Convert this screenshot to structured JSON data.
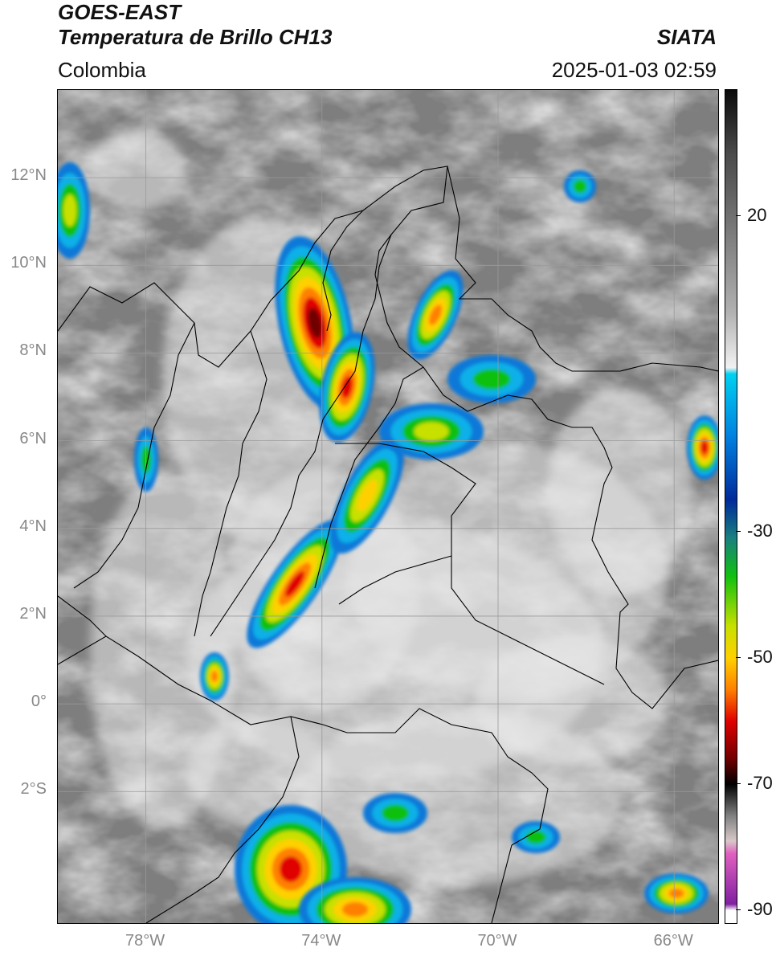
{
  "header": {
    "title_line1": "GOES-EAST",
    "title_line2": "Temperatura de Brillo CH13",
    "region": "Colombia",
    "agency": "SIATA",
    "timestamp": "2025-01-03 02:59"
  },
  "axes": {
    "lat_labels": [
      "12°N",
      "10°N",
      "8°N",
      "6°N",
      "4°N",
      "2°N",
      "0°",
      "2°S"
    ],
    "lon_labels": [
      "78°W",
      "74°W",
      "70°W",
      "66°W"
    ]
  },
  "colorbar": {
    "labels": [
      "20",
      "-30",
      "-50",
      "-70",
      "-90"
    ],
    "min": -92,
    "max": 40,
    "stops": [
      {
        "v": 40,
        "c": "#0a0a0a"
      },
      {
        "v": 30,
        "c": "#4a4a4a"
      },
      {
        "v": 20,
        "c": "#707070"
      },
      {
        "v": 5,
        "c": "#b0b0b0"
      },
      {
        "v": -4,
        "c": "#f2f2f2"
      },
      {
        "v": -5,
        "c": "#00d0f0"
      },
      {
        "v": -15,
        "c": "#0080e0"
      },
      {
        "v": -25,
        "c": "#002a9a"
      },
      {
        "v": -31,
        "c": "#1a8080"
      },
      {
        "v": -37,
        "c": "#10c010"
      },
      {
        "v": -45,
        "c": "#c8e000"
      },
      {
        "v": -50,
        "c": "#ffd000"
      },
      {
        "v": -55,
        "c": "#ff8000"
      },
      {
        "v": -60,
        "c": "#e00000"
      },
      {
        "v": -66,
        "c": "#700000"
      },
      {
        "v": -70,
        "c": "#000000"
      },
      {
        "v": -75,
        "c": "#808080"
      },
      {
        "v": -79,
        "c": "#d8c8c8"
      },
      {
        "v": -81,
        "c": "#e060c0"
      },
      {
        "v": -89,
        "c": "#8020a0"
      },
      {
        "v": -90,
        "c": "#ffffff"
      },
      {
        "v": -92,
        "c": "#ffffff"
      }
    ]
  },
  "map": {
    "extent": {
      "lon_min": -80,
      "lon_max": -65,
      "lat_min": -5,
      "lat_max": 14
    },
    "gridline_color": "#9a9a9a",
    "border_color": "#000000"
  }
}
